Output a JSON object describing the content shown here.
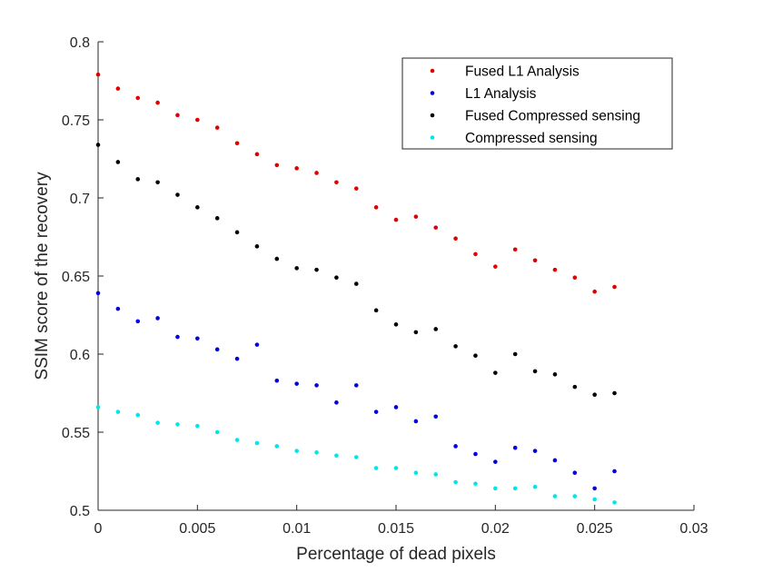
{
  "chart_data": {
    "type": "scatter",
    "title": "",
    "xlabel": "Percentage of dead pixels",
    "ylabel": "SSIM score of the recovery",
    "xlim": [
      0,
      0.03
    ],
    "ylim": [
      0.5,
      0.8
    ],
    "xticks": [
      0,
      0.005,
      0.01,
      0.015,
      0.02,
      0.025,
      0.03
    ],
    "xtick_labels": [
      "0",
      "0.005",
      "0.01",
      "0.015",
      "0.02",
      "0.025",
      "0.03"
    ],
    "yticks": [
      0.5,
      0.55,
      0.6,
      0.65,
      0.7,
      0.75,
      0.8
    ],
    "ytick_labels": [
      "0.5",
      "0.55",
      "0.6",
      "0.65",
      "0.7",
      "0.75",
      "0.8"
    ],
    "grid": false,
    "legend_position": "top-right",
    "x": [
      0,
      0.001,
      0.002,
      0.003,
      0.004,
      0.005,
      0.006,
      0.007,
      0.008,
      0.009,
      0.01,
      0.011,
      0.012,
      0.013,
      0.014,
      0.015,
      0.016,
      0.017,
      0.018,
      0.019,
      0.02,
      0.021,
      0.022,
      0.023,
      0.024,
      0.025,
      0.026
    ],
    "series": [
      {
        "name": "Fused L1 Analysis",
        "color": "#e00000",
        "values": [
          0.779,
          0.77,
          0.764,
          0.761,
          0.753,
          0.75,
          0.745,
          0.735,
          0.728,
          0.721,
          0.719,
          0.716,
          0.71,
          0.706,
          0.694,
          0.686,
          0.688,
          0.681,
          0.674,
          0.664,
          0.656,
          0.667,
          0.66,
          0.654,
          0.649,
          0.64,
          0.643
        ]
      },
      {
        "name": "L1 Analysis",
        "color": "#0000e0",
        "values": [
          0.639,
          0.629,
          0.621,
          0.623,
          0.611,
          0.61,
          0.603,
          0.597,
          0.606,
          0.583,
          0.581,
          0.58,
          0.569,
          0.58,
          0.563,
          0.566,
          0.557,
          0.56,
          0.541,
          0.536,
          0.531,
          0.54,
          0.538,
          0.532,
          0.524,
          0.514,
          0.525
        ]
      },
      {
        "name": "Fused Compressed sensing",
        "color": "#000000",
        "values": [
          0.734,
          0.723,
          0.712,
          0.71,
          0.702,
          0.694,
          0.687,
          0.678,
          0.669,
          0.661,
          0.655,
          0.654,
          0.649,
          0.645,
          0.628,
          0.619,
          0.614,
          0.616,
          0.605,
          0.599,
          0.588,
          0.6,
          0.589,
          0.587,
          0.579,
          0.574,
          0.575
        ]
      },
      {
        "name": "Compressed sensing",
        "color": "#00e5ee",
        "values": [
          0.566,
          0.563,
          0.561,
          0.556,
          0.555,
          0.554,
          0.55,
          0.545,
          0.543,
          0.541,
          0.538,
          0.537,
          0.535,
          0.534,
          0.527,
          0.527,
          0.524,
          0.523,
          0.518,
          0.517,
          0.514,
          0.514,
          0.515,
          0.509,
          0.509,
          0.507,
          0.505
        ]
      }
    ]
  }
}
